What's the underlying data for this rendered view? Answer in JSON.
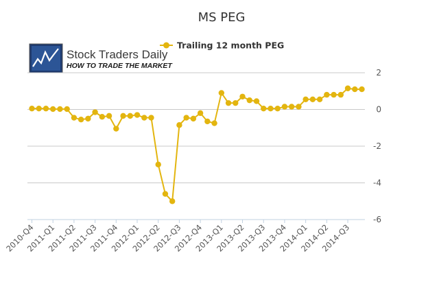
{
  "chart_data": {
    "type": "line",
    "title": "MS PEG",
    "xlabel": "",
    "ylabel": "",
    "ylim": [
      -6,
      2
    ],
    "yticks": [
      2,
      0,
      -2,
      -4,
      -6
    ],
    "grid": true,
    "legend_position": "top",
    "x_tick_labels": [
      "2010-Q4",
      "2011-Q1",
      "2011-Q2",
      "2011-Q3",
      "2011-Q4",
      "2012-Q1",
      "2012-Q2",
      "2012-Q3",
      "2012-Q4",
      "2013-Q1",
      "2013-Q2",
      "2013-Q3",
      "2013-Q4",
      "2014-Q1",
      "2014-Q2",
      "2014-Q3"
    ],
    "series": [
      {
        "name": "Trailing 12 month PEG",
        "color": "#e3b50f",
        "values": [
          0.05,
          0.05,
          0.05,
          0.02,
          0.02,
          0.02,
          -0.45,
          -0.55,
          -0.5,
          -0.15,
          -0.4,
          -0.35,
          -1.05,
          -0.35,
          -0.35,
          -0.3,
          -0.45,
          -0.45,
          -3.0,
          -4.6,
          -5.0,
          -0.85,
          -0.45,
          -0.5,
          -0.2,
          -0.65,
          -0.75,
          0.9,
          0.35,
          0.35,
          0.7,
          0.5,
          0.45,
          0.05,
          0.05,
          0.05,
          0.15,
          0.15,
          0.15,
          0.55,
          0.55,
          0.55,
          0.8,
          0.8,
          0.8,
          1.15,
          1.1,
          1.1
        ]
      }
    ]
  },
  "logo": {
    "name": "Stock Traders Daily",
    "tagline": "HOW TO TRADE THE MARKET"
  }
}
